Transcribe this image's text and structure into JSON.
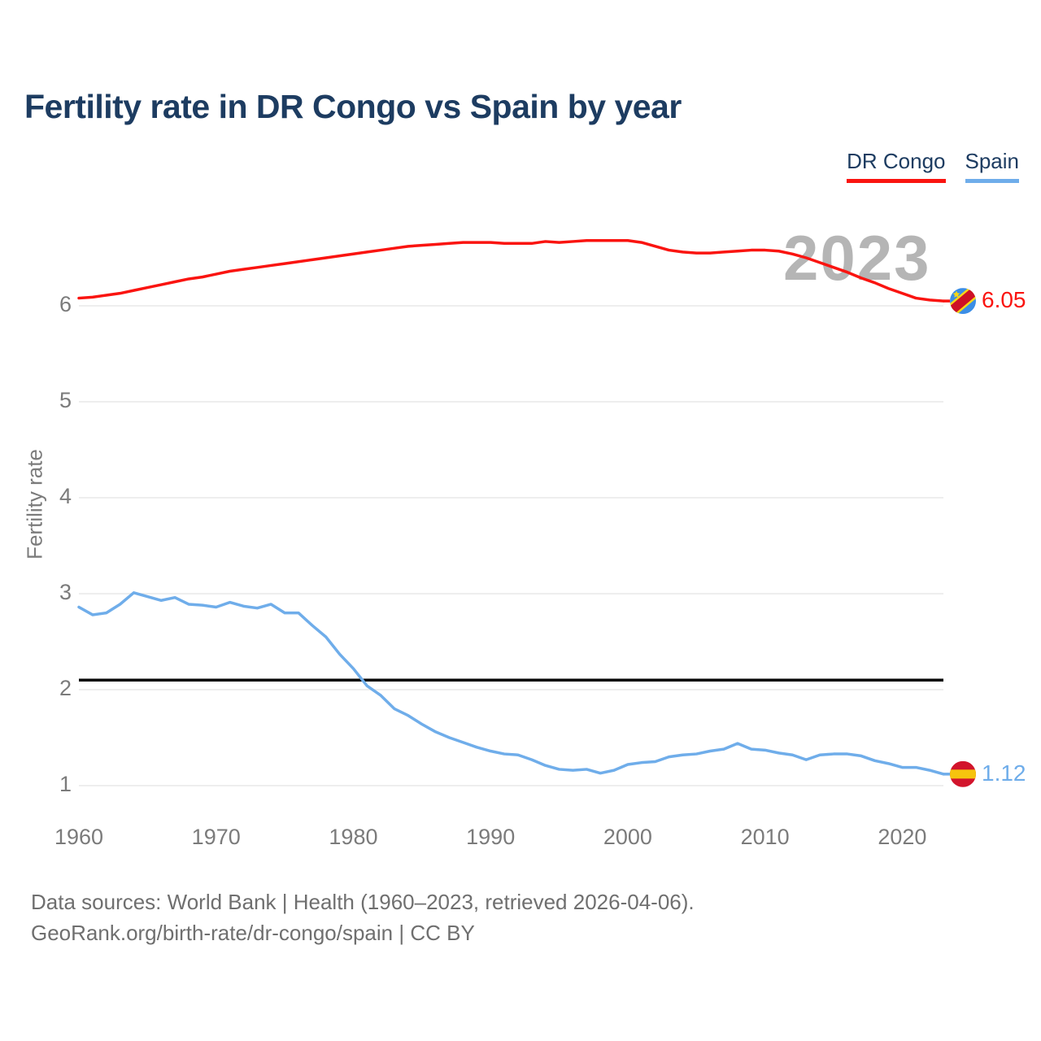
{
  "header": {
    "title": "Fertility rate in DR Congo vs Spain by year"
  },
  "legend": {
    "items": [
      {
        "label": "DR Congo",
        "color_key": "dr_congo"
      },
      {
        "label": "Spain",
        "color_key": "spain"
      }
    ]
  },
  "chart": {
    "watermark": "2023",
    "y_axis_label": "Fertility rate",
    "end_labels": {
      "dr_congo": "6.05",
      "spain": "1.12"
    }
  },
  "chart_data": {
    "type": "line",
    "title": "Fertility rate in DR Congo vs Spain by year",
    "xlabel": "",
    "ylabel": "Fertility rate",
    "xlim": [
      1960,
      2023
    ],
    "ylim": [
      1,
      6.9
    ],
    "grid": "horizontal",
    "legend_position": "top-right",
    "yticks": [
      1,
      2,
      3,
      4,
      5,
      6
    ],
    "xticks": [
      1960,
      1970,
      1980,
      1990,
      2000,
      2010,
      2020
    ],
    "reference_line": {
      "value": 2.1,
      "color": "#000000"
    },
    "x": [
      1960,
      1961,
      1962,
      1963,
      1964,
      1965,
      1966,
      1967,
      1968,
      1969,
      1970,
      1971,
      1972,
      1973,
      1974,
      1975,
      1976,
      1977,
      1978,
      1979,
      1980,
      1981,
      1982,
      1983,
      1984,
      1985,
      1986,
      1987,
      1988,
      1989,
      1990,
      1991,
      1992,
      1993,
      1994,
      1995,
      1996,
      1997,
      1998,
      1999,
      2000,
      2001,
      2002,
      2003,
      2004,
      2005,
      2006,
      2007,
      2008,
      2009,
      2010,
      2011,
      2012,
      2013,
      2014,
      2015,
      2016,
      2017,
      2018,
      2019,
      2020,
      2021,
      2022,
      2023
    ],
    "series": [
      {
        "name": "DR Congo",
        "color_key": "dr_congo",
        "end_value": 6.05,
        "values": [
          6.08,
          6.09,
          6.11,
          6.13,
          6.16,
          6.19,
          6.22,
          6.25,
          6.28,
          6.3,
          6.33,
          6.36,
          6.38,
          6.4,
          6.42,
          6.44,
          6.46,
          6.48,
          6.5,
          6.52,
          6.54,
          6.56,
          6.58,
          6.6,
          6.62,
          6.63,
          6.64,
          6.65,
          6.66,
          6.66,
          6.66,
          6.65,
          6.65,
          6.65,
          6.67,
          6.66,
          6.67,
          6.68,
          6.68,
          6.68,
          6.68,
          6.66,
          6.62,
          6.58,
          6.56,
          6.55,
          6.55,
          6.56,
          6.57,
          6.58,
          6.58,
          6.57,
          6.54,
          6.5,
          6.45,
          6.4,
          6.35,
          6.29,
          6.24,
          6.18,
          6.13,
          6.08,
          6.06,
          6.05
        ]
      },
      {
        "name": "Spain",
        "color_key": "spain",
        "end_value": 1.12,
        "values": [
          2.86,
          2.78,
          2.8,
          2.89,
          3.01,
          2.97,
          2.93,
          2.96,
          2.89,
          2.88,
          2.86,
          2.91,
          2.87,
          2.85,
          2.89,
          2.8,
          2.8,
          2.67,
          2.55,
          2.37,
          2.22,
          2.04,
          1.94,
          1.8,
          1.73,
          1.64,
          1.56,
          1.5,
          1.45,
          1.4,
          1.36,
          1.33,
          1.32,
          1.27,
          1.21,
          1.17,
          1.16,
          1.17,
          1.13,
          1.16,
          1.22,
          1.24,
          1.25,
          1.3,
          1.32,
          1.33,
          1.36,
          1.38,
          1.44,
          1.38,
          1.37,
          1.34,
          1.32,
          1.27,
          1.32,
          1.33,
          1.33,
          1.31,
          1.26,
          1.23,
          1.19,
          1.19,
          1.16,
          1.12
        ]
      }
    ]
  },
  "colors": {
    "dr_congo": "#fa1410",
    "spain": "#6fadea",
    "title_navy": "#1d3c61",
    "axis_gray": "#7b7b7b",
    "grid_gray": "#e8e8e8",
    "footer_gray": "#6f6f6f",
    "watermark_gray": "#b5b5b5",
    "reference_black": "#000000",
    "flag_drc_blue": "#3b8ee6",
    "flag_drc_yellow": "#f7d618",
    "flag_drc_red": "#ce1126",
    "flag_spain_red": "#d2142c",
    "flag_spain_yellow": "#f6c40e"
  },
  "footer": {
    "line1": "Data sources: World Bank | Health (1960–2023, retrieved 2026-04-06).",
    "line2": "GeoRank.org/birth-rate/dr-congo/spain | CC BY"
  }
}
